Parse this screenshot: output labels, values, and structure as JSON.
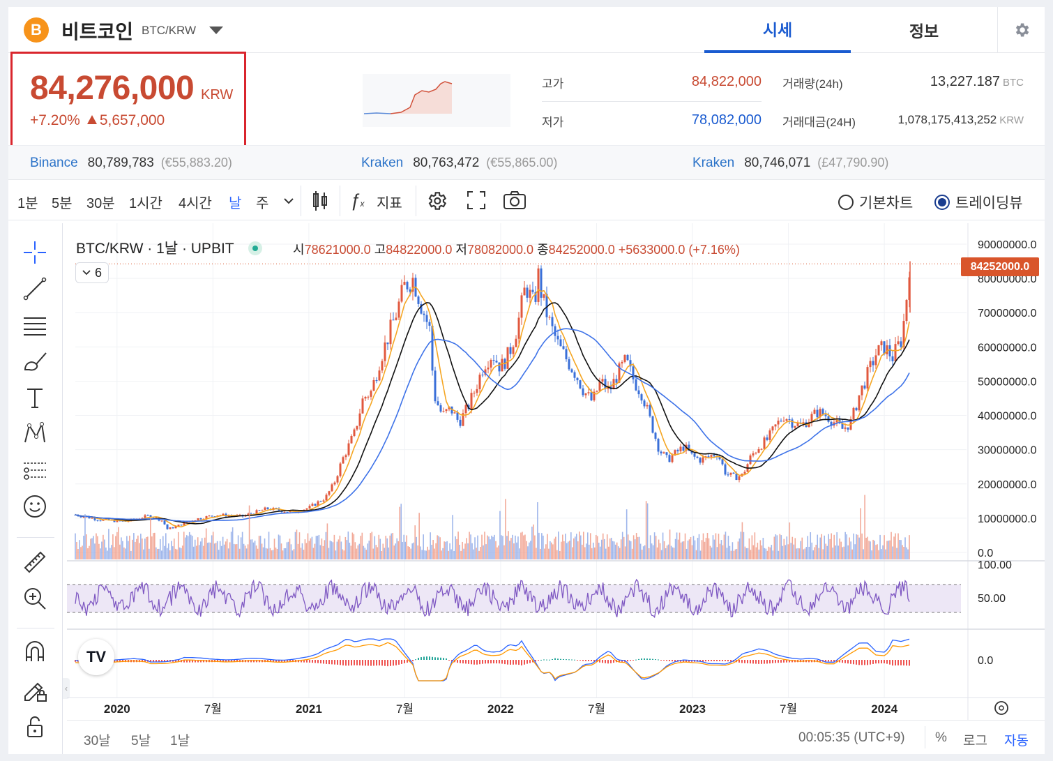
{
  "header": {
    "coin_logo": "B",
    "coin_name": "비트코인",
    "coin_pair": "BTC/KRW",
    "tabs": [
      {
        "label": "시세",
        "active": true
      },
      {
        "label": "정보",
        "active": false
      }
    ],
    "settings_icon": "gear-icon"
  },
  "price": {
    "current": "84,276,000",
    "unit": "KRW",
    "change_pct": "+7.20%",
    "change_amt": "5,657,000",
    "color": "#c84a32"
  },
  "stats": {
    "high_label": "고가",
    "high": "84,822,000",
    "low_label": "저가",
    "low": "78,082,000",
    "volume_label": "거래량(24h)",
    "volume": "13,227.187",
    "volume_unit": "BTC",
    "turnover_label": "거래대금(24H)",
    "turnover": "1,078,175,413,252",
    "turnover_unit": "KRW"
  },
  "exchanges": [
    {
      "name": "Binance",
      "price": "80,789,783",
      "fx": "(€55,883.20)"
    },
    {
      "name": "Kraken",
      "price": "80,763,472",
      "fx": "(€55,865.00)"
    },
    {
      "name": "Kraken",
      "price": "80,746,071",
      "fx": "(£47,790.90)"
    }
  ],
  "toolbar": {
    "timeframes": [
      "1분",
      "5분",
      "30분",
      "1시간",
      "4시간",
      "날",
      "주"
    ],
    "selected_timeframe": "날",
    "indicator_label": "지표",
    "chart_modes": [
      {
        "label": "기본차트",
        "selected": false
      },
      {
        "label": "트레이딩뷰",
        "selected": true
      }
    ]
  },
  "chart": {
    "symbol": "BTC/KRW · 1날 · UPBIT",
    "ohlc": {
      "o_label": "시",
      "o": "78621000.0",
      "h_label": "고",
      "h": "84822000.0",
      "l_label": "저",
      "l": "78082000.0",
      "c_label": "종",
      "c": "84252000.0",
      "chg": "+5633000.0 (+7.16%)"
    },
    "indicator_count": "6",
    "last_price_tag": "84252000.0",
    "tv_logo": "TV"
  },
  "chart_data": {
    "type": "line",
    "x": [
      "2020",
      "7월",
      "2021",
      "7월",
      "2022",
      "7월",
      "2023",
      "7월",
      "2024"
    ],
    "ylim": [
      0,
      90000000
    ],
    "y_ticks": [
      "90000000.0",
      "80000000.0",
      "70000000.0",
      "60000000.0",
      "50000000.0",
      "40000000.0",
      "30000000.0",
      "20000000.0",
      "10000000.0",
      "0.0"
    ],
    "rsi_ticks": [
      "100.00",
      "50.00"
    ],
    "macd_ticks": [
      "0.0"
    ],
    "price_path": [
      [
        0,
        11000000
      ],
      [
        0.03,
        9500000
      ],
      [
        0.06,
        9000000
      ],
      [
        0.09,
        10800000
      ],
      [
        0.105,
        9200000
      ],
      [
        0.11,
        6800000
      ],
      [
        0.12,
        7500000
      ],
      [
        0.14,
        9500000
      ],
      [
        0.17,
        11000000
      ],
      [
        0.2,
        10500000
      ],
      [
        0.23,
        12800000
      ],
      [
        0.26,
        11800000
      ],
      [
        0.28,
        13000000
      ],
      [
        0.3,
        16000000
      ],
      [
        0.31,
        20000000
      ],
      [
        0.32,
        27000000
      ],
      [
        0.335,
        35000000
      ],
      [
        0.345,
        45000000
      ],
      [
        0.355,
        47000000
      ],
      [
        0.365,
        56000000
      ],
      [
        0.375,
        63000000
      ],
      [
        0.385,
        70000000
      ],
      [
        0.395,
        78000000
      ],
      [
        0.405,
        80000000
      ],
      [
        0.415,
        72000000
      ],
      [
        0.425,
        65000000
      ],
      [
        0.43,
        46000000
      ],
      [
        0.44,
        40000000
      ],
      [
        0.45,
        42000000
      ],
      [
        0.46,
        38000000
      ],
      [
        0.47,
        42000000
      ],
      [
        0.48,
        48000000
      ],
      [
        0.49,
        55000000
      ],
      [
        0.5,
        58000000
      ],
      [
        0.51,
        54000000
      ],
      [
        0.52,
        58000000
      ],
      [
        0.53,
        66000000
      ],
      [
        0.54,
        78000000
      ],
      [
        0.55,
        72000000
      ],
      [
        0.555,
        81000000
      ],
      [
        0.56,
        74000000
      ],
      [
        0.57,
        66000000
      ],
      [
        0.58,
        60000000
      ],
      [
        0.59,
        56000000
      ],
      [
        0.6,
        52000000
      ],
      [
        0.61,
        47000000
      ],
      [
        0.62,
        44000000
      ],
      [
        0.63,
        50000000
      ],
      [
        0.64,
        47000000
      ],
      [
        0.65,
        52000000
      ],
      [
        0.66,
        56000000
      ],
      [
        0.67,
        50000000
      ],
      [
        0.68,
        46000000
      ],
      [
        0.69,
        38000000
      ],
      [
        0.7,
        30000000
      ],
      [
        0.71,
        27000000
      ],
      [
        0.72,
        29000000
      ],
      [
        0.73,
        31000000
      ],
      [
        0.74,
        28000000
      ],
      [
        0.75,
        27000000
      ],
      [
        0.76,
        28000000
      ],
      [
        0.77,
        29000000
      ],
      [
        0.78,
        23000000
      ],
      [
        0.79,
        22000000
      ],
      [
        0.8,
        22500000
      ],
      [
        0.81,
        28000000
      ],
      [
        0.82,
        31000000
      ],
      [
        0.83,
        33000000
      ],
      [
        0.84,
        37000000
      ],
      [
        0.85,
        40000000
      ],
      [
        0.86,
        38000000
      ],
      [
        0.87,
        37000000
      ],
      [
        0.88,
        39000000
      ],
      [
        0.89,
        41000000
      ],
      [
        0.9,
        40000000
      ],
      [
        0.91,
        38000000
      ],
      [
        0.92,
        36000000
      ],
      [
        0.93,
        38000000
      ],
      [
        0.94,
        46000000
      ],
      [
        0.95,
        52000000
      ],
      [
        0.96,
        58000000
      ],
      [
        0.97,
        60000000
      ],
      [
        0.98,
        57000000
      ],
      [
        0.99,
        62000000
      ],
      [
        0.995,
        70000000
      ],
      [
        1.0,
        84000000
      ]
    ]
  },
  "left_tools": [
    "crosshair-icon",
    "trendline-icon",
    "horizontal-lines-icon",
    "brush-icon",
    "text-icon",
    "pattern-icon",
    "forecast-icon",
    "emoji-icon",
    "ruler-icon",
    "zoom-in-icon",
    "magnet-icon",
    "lock-drawing-icon",
    "unlock-icon"
  ],
  "bottom_bar": {
    "ranges": [
      "30날",
      "5날",
      "1날"
    ],
    "time": "00:05:35 (UTC+9)",
    "percent": "%",
    "log": "로그",
    "auto": "자동"
  }
}
